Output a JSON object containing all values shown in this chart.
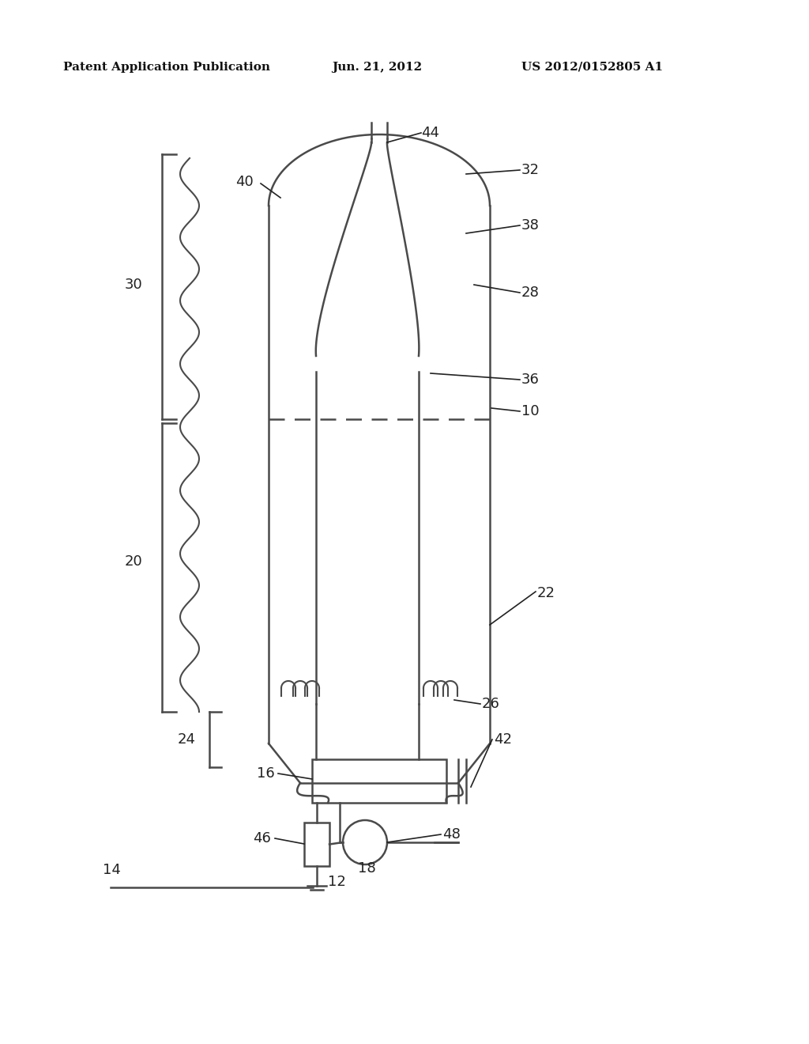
{
  "bg_color": "#ffffff",
  "line_color": "#4a4a4a",
  "text_color": "#222222",
  "header_text1": "Patent Application Publication",
  "header_text2": "Jun. 21, 2012",
  "header_text3": "US 2012/0152805 A1",
  "figsize": [
    10.24,
    13.2
  ],
  "dpi": 100
}
